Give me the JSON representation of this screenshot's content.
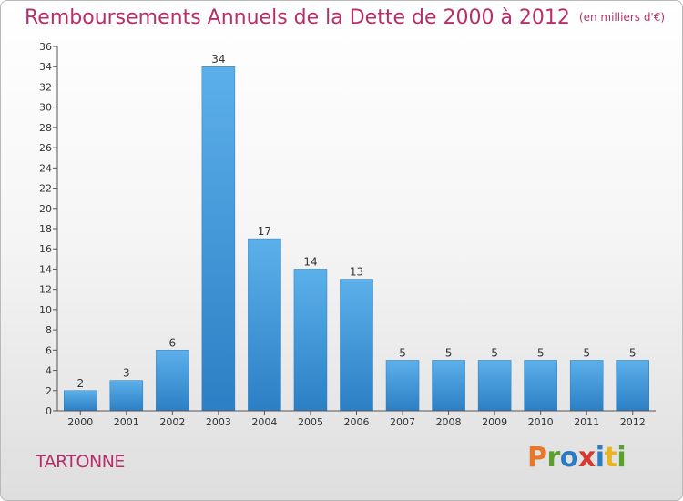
{
  "header": {
    "title": "Remboursements Annuels de la Dette de 2000 à 2012",
    "unit_note": "(en milliers d'€)"
  },
  "footer": {
    "commune": "TARTONNE",
    "logo_text": "Proxiti"
  },
  "colors": {
    "bar_light": "#5cb0ea",
    "bar_dark": "#2c7fc4",
    "title": "#b5306a",
    "axis": "#555555"
  },
  "chart_data": {
    "type": "bar",
    "title": "Remboursements Annuels de la Dette de 2000 à 2012",
    "subtitle": "(en milliers d'€)",
    "categories": [
      "2000",
      "2001",
      "2002",
      "2003",
      "2004",
      "2005",
      "2006",
      "2007",
      "2008",
      "2009",
      "2010",
      "2011",
      "2012"
    ],
    "values": [
      2,
      3,
      6,
      34,
      17,
      14,
      13,
      5,
      5,
      5,
      5,
      5,
      5
    ],
    "ylim": [
      0,
      36
    ],
    "ytick_step": 2,
    "grid": false,
    "legend": "none",
    "data_labels": true
  }
}
